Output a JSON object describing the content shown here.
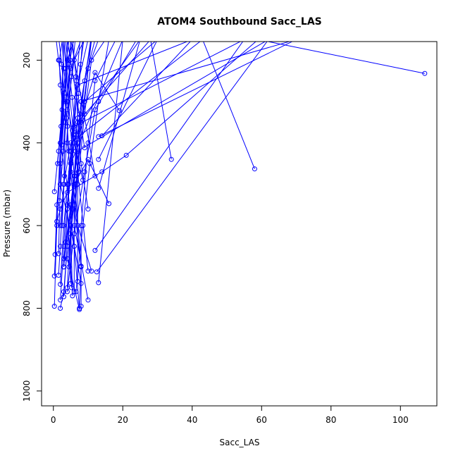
{
  "chart_data": {
    "type": "line",
    "title": "ATOM4 Southbound Sacc_LAS",
    "xlabel": "Sacc_LAS",
    "ylabel": "Pressure (mbar)",
    "xlim": [
      -3.4,
      110.5
    ],
    "ylim": [
      1036,
      155
    ],
    "y_reversed": true,
    "grid": false,
    "color": "#0000ff",
    "x_ticks": [
      0,
      20,
      40,
      60,
      80,
      100
    ],
    "y_ticks": [
      200,
      400,
      600,
      800,
      1000
    ],
    "series": [
      {
        "x": [
          107,
          59,
          21,
          14,
          4,
          2,
          1,
          0.3
        ],
        "y": [
          232,
          150,
          430,
          470,
          520,
          560,
          590,
          795
        ]
      },
      {
        "x": [
          58,
          43,
          5,
          3,
          2
        ],
        "y": [
          463,
          150,
          400,
          500,
          600
        ]
      },
      {
        "x": [
          34,
          28,
          7,
          4,
          3,
          2
        ],
        "y": [
          440,
          150,
          350,
          500,
          650,
          780
        ]
      },
      {
        "x": [
          19,
          12,
          6,
          4,
          3
        ],
        "y": [
          322,
          230,
          400,
          560,
          700
        ]
      },
      {
        "x": [
          16,
          10,
          6,
          4,
          3,
          2
        ],
        "y": [
          547,
          440,
          500,
          650,
          760,
          800
        ]
      },
      {
        "x": [
          13,
          70,
          8,
          5,
          4
        ],
        "y": [
          385,
          150,
          300,
          600,
          750
        ]
      },
      {
        "x": [
          14,
          40,
          7,
          5,
          3
        ],
        "y": [
          383,
          150,
          260,
          450,
          700
        ]
      },
      {
        "x": [
          13,
          30,
          9,
          6,
          4,
          7.5
        ],
        "y": [
          440,
          150,
          300,
          550,
          680,
          803
        ]
      },
      {
        "x": [
          12,
          5,
          4,
          8,
          7.5
        ],
        "y": [
          480,
          150,
          400,
          700,
          800
        ]
      },
      {
        "x": [
          13,
          25,
          8,
          6,
          10
        ],
        "y": [
          510,
          150,
          350,
          600,
          780
        ]
      },
      {
        "x": [
          9,
          4,
          3,
          2,
          1.5
        ],
        "y": [
          412,
          150,
          500,
          650,
          720
        ]
      },
      {
        "x": [
          10,
          3,
          2,
          4,
          6,
          8
        ],
        "y": [
          710,
          150,
          400,
          500,
          650,
          740
        ]
      },
      {
        "x": [
          12,
          55,
          6,
          4,
          5
        ],
        "y": [
          660,
          150,
          360,
          550,
          740
        ]
      },
      {
        "x": [
          13,
          20,
          5,
          7,
          11
        ],
        "y": [
          738,
          150,
          450,
          600,
          710
        ]
      },
      {
        "x": [
          12.5,
          62,
          7,
          5,
          3
        ],
        "y": [
          712,
          150,
          420,
          550,
          680
        ]
      },
      {
        "x": [
          8,
          3,
          2,
          6,
          7.5
        ],
        "y": [
          698,
          150,
          500,
          650,
          800
        ]
      },
      {
        "x": [
          0.3,
          1,
          2,
          4,
          6
        ],
        "y": [
          722,
          600,
          400,
          200,
          150
        ]
      },
      {
        "x": [
          0.5,
          1,
          3,
          5,
          8
        ],
        "y": [
          670,
          550,
          350,
          220,
          150
        ]
      },
      {
        "x": [
          1.5,
          2,
          4,
          6,
          9
        ],
        "y": [
          668,
          500,
          320,
          200,
          150
        ]
      },
      {
        "x": [
          2,
          3,
          5,
          7,
          10
        ],
        "y": [
          742,
          600,
          420,
          260,
          150
        ]
      },
      {
        "x": [
          3,
          4,
          6,
          8,
          11
        ],
        "y": [
          772,
          650,
          480,
          300,
          150
        ]
      },
      {
        "x": [
          5.5,
          5,
          7,
          9,
          12
        ],
        "y": [
          770,
          600,
          400,
          250,
          150
        ]
      },
      {
        "x": [
          6,
          6,
          8,
          10,
          13
        ],
        "y": [
          760,
          550,
          350,
          220,
          150
        ]
      },
      {
        "x": [
          7,
          7,
          9,
          11,
          15
        ],
        "y": [
          735,
          500,
          330,
          200,
          150
        ]
      },
      {
        "x": [
          8,
          8,
          10,
          12,
          18
        ],
        "y": [
          795,
          600,
          400,
          250,
          150
        ]
      },
      {
        "x": [
          1,
          2,
          3,
          1.5,
          0.8
        ],
        "y": [
          590,
          450,
          300,
          200,
          150
        ]
      },
      {
        "x": [
          0.3,
          1.5,
          2.5,
          3.5,
          4.5
        ],
        "y": [
          518,
          420,
          320,
          220,
          150
        ]
      },
      {
        "x": [
          1.8,
          2.8,
          3.8,
          4.8,
          5.8
        ],
        "y": [
          540,
          420,
          300,
          200,
          150
        ]
      },
      {
        "x": [
          2.5,
          3.2,
          4.1,
          5.2,
          6.3
        ],
        "y": [
          600,
          480,
          360,
          240,
          150
        ]
      },
      {
        "x": [
          3.5,
          4.4,
          5.5,
          6.6,
          7.7
        ],
        "y": [
          640,
          500,
          370,
          250,
          150
        ]
      },
      {
        "x": [
          4.5,
          5.6,
          6.4,
          7.3,
          8.4
        ],
        "y": [
          700,
          560,
          420,
          280,
          150
        ]
      },
      {
        "x": [
          1.2,
          2.2,
          3.1,
          4.2,
          5.1
        ],
        "y": [
          450,
          360,
          280,
          210,
          150
        ]
      },
      {
        "x": [
          5,
          5.8,
          6.7,
          7.8,
          8.8
        ],
        "y": [
          470,
          380,
          290,
          210,
          150
        ]
      },
      {
        "x": [
          7.2,
          6.5,
          5.4,
          4.3,
          3.4
        ],
        "y": [
          470,
          380,
          290,
          210,
          150
        ]
      },
      {
        "x": [
          2.4,
          3,
          2,
          1.7,
          2.6
        ],
        "y": [
          405,
          330,
          260,
          200,
          150
        ]
      },
      {
        "x": [
          4.5,
          3.8,
          3,
          2.4,
          1.6
        ],
        "y": [
          420,
          340,
          270,
          210,
          150
        ]
      },
      {
        "x": [
          8.5,
          6,
          4,
          3,
          2.5
        ],
        "y": [
          490,
          400,
          300,
          220,
          150
        ]
      },
      {
        "x": [
          10,
          8,
          7,
          6.5,
          5.5
        ],
        "y": [
          560,
          450,
          340,
          240,
          150
        ]
      },
      {
        "x": [
          3,
          5,
          7,
          9,
          11
        ],
        "y": [
          700,
          550,
          400,
          300,
          150
        ]
      },
      {
        "x": [
          6.5,
          8.5,
          10.5,
          13,
          16
        ],
        "y": [
          760,
          600,
          450,
          300,
          150
        ]
      },
      {
        "x": [
          4,
          6,
          9,
          12,
          24
        ],
        "y": [
          760,
          620,
          470,
          320,
          150
        ]
      },
      {
        "x": [
          5.2,
          4.8,
          6.2,
          7.6,
          10.8
        ],
        "y": [
          750,
          620,
          480,
          330,
          150
        ]
      }
    ]
  }
}
